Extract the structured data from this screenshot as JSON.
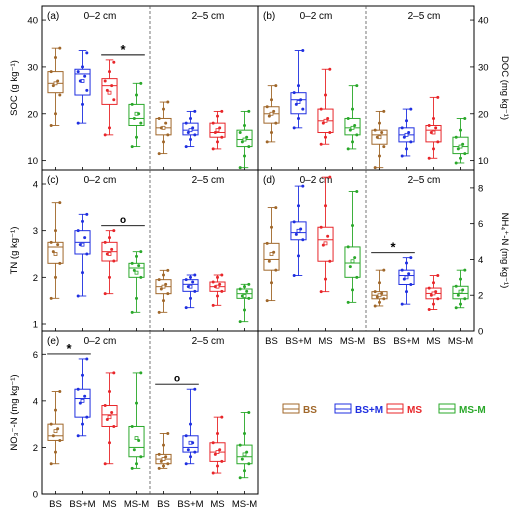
{
  "colors": {
    "BS": "#a0672a",
    "BS+M": "#1f2fe0",
    "MS": "#e8262a",
    "MS-M": "#2aa82a"
  },
  "legend": [
    {
      "key": "BS",
      "label": "BS"
    },
    {
      "key": "BS+M",
      "label": "BS+M"
    },
    {
      "key": "MS",
      "label": "MS"
    },
    {
      "key": "MS-M",
      "label": "MS-M"
    }
  ],
  "x_tick_labels": [
    "BS",
    "BS+M",
    "MS",
    "MS-M",
    "BS",
    "BS+M",
    "MS",
    "MS-M"
  ],
  "chart_data": [
    {
      "type": "box",
      "panel": "(a)",
      "ylabel": "SOC (g kg⁻¹)",
      "ylim": [
        8,
        43
      ],
      "yticks": [
        10,
        20,
        30,
        40
      ],
      "depth_labels": [
        "0–2 cm",
        "2–5 cm"
      ],
      "annotations": [
        {
          "text": "*",
          "between": [
            2,
            3
          ]
        }
      ],
      "boxes": [
        {
          "group": "BS",
          "depth": "0–2 cm",
          "min": 17.5,
          "q1": 24.5,
          "median": 26.5,
          "q3": 29,
          "max": 34,
          "mean": 26.5,
          "points": [
            17.5,
            20,
            24,
            26,
            27,
            29,
            32,
            34
          ]
        },
        {
          "group": "BS+M",
          "depth": "0–2 cm",
          "min": 18,
          "q1": 24,
          "median": 28.5,
          "q3": 29.5,
          "max": 33.5,
          "mean": 27,
          "points": [
            18,
            22,
            25,
            27,
            28,
            29,
            30,
            33
          ]
        },
        {
          "group": "MS",
          "depth": "0–2 cm",
          "min": 15.5,
          "q1": 22,
          "median": 26,
          "q3": 27.5,
          "max": 31.5,
          "mean": 24.5,
          "points": [
            15.5,
            17,
            23,
            25,
            26,
            27,
            29,
            31
          ]
        },
        {
          "group": "MS-M",
          "depth": "0–2 cm",
          "min": 13,
          "q1": 17.5,
          "median": 19,
          "q3": 22,
          "max": 26.5,
          "mean": 20,
          "points": [
            13,
            15,
            18,
            19,
            20,
            22,
            24,
            26.5
          ]
        },
        {
          "group": "BS",
          "depth": "2–5 cm",
          "min": 11.5,
          "q1": 15.5,
          "median": 17,
          "q3": 19,
          "max": 22.5,
          "mean": 17,
          "points": [
            11.5,
            14,
            15.5,
            17,
            18,
            19,
            21,
            22.5
          ]
        },
        {
          "group": "BS+M",
          "depth": "2–5 cm",
          "min": 13,
          "q1": 15.5,
          "median": 16.5,
          "q3": 18,
          "max": 20.5,
          "mean": 16.5,
          "points": [
            13,
            14.5,
            15.5,
            16,
            17,
            18,
            19,
            20.5
          ]
        },
        {
          "group": "MS",
          "depth": "2–5 cm",
          "min": 12.5,
          "q1": 15,
          "median": 16,
          "q3": 18,
          "max": 20.5,
          "mean": 16.5,
          "points": [
            12.5,
            14,
            15,
            16,
            17,
            18,
            19.5,
            20.5
          ]
        },
        {
          "group": "MS-M",
          "depth": "2–5 cm",
          "min": 8.5,
          "q1": 13,
          "median": 14.5,
          "q3": 16.5,
          "max": 20.5,
          "mean": 14.5,
          "points": [
            8.5,
            11,
            13,
            14,
            15,
            16,
            17.5,
            20.5
          ]
        }
      ]
    },
    {
      "type": "box",
      "panel": "(b)",
      "ylabel": "DOC (mg kg⁻¹)",
      "ylim": [
        8,
        43
      ],
      "yticks": [
        10,
        20,
        30,
        40
      ],
      "depth_labels": [
        "0–2 cm",
        "2–5 cm"
      ],
      "annotations": [],
      "boxes": [
        {
          "group": "BS",
          "depth": "0–2 cm",
          "min": 14,
          "q1": 18,
          "median": 20,
          "q3": 21.5,
          "max": 26,
          "mean": 20,
          "points": [
            14,
            16,
            18,
            19.5,
            20.5,
            21.5,
            23,
            26
          ]
        },
        {
          "group": "BS+M",
          "depth": "0–2 cm",
          "min": 17,
          "q1": 20,
          "median": 23,
          "q3": 24.5,
          "max": 33.5,
          "mean": 22.5,
          "points": [
            17,
            19,
            21,
            22,
            23,
            24.5,
            26,
            33.5
          ]
        },
        {
          "group": "MS",
          "depth": "0–2 cm",
          "min": 13.5,
          "q1": 16,
          "median": 18.5,
          "q3": 21,
          "max": 29.5,
          "mean": 18.5,
          "points": [
            13.5,
            15,
            16,
            18,
            19,
            21,
            24,
            29.5
          ]
        },
        {
          "group": "MS-M",
          "depth": "0–2 cm",
          "min": 12.5,
          "q1": 15.5,
          "median": 17,
          "q3": 19,
          "max": 26,
          "mean": 17,
          "points": [
            12.5,
            14,
            15.5,
            16.5,
            17.5,
            19,
            21,
            26
          ]
        },
        {
          "group": "BS",
          "depth": "2–5 cm",
          "min": 8.5,
          "q1": 13.5,
          "median": 15.5,
          "q3": 16.5,
          "max": 20.5,
          "mean": 15,
          "points": [
            8.5,
            11,
            13,
            15,
            16,
            16.5,
            18,
            20.5
          ]
        },
        {
          "group": "BS+M",
          "depth": "2–5 cm",
          "min": 11,
          "q1": 14,
          "median": 15.5,
          "q3": 17,
          "max": 21,
          "mean": 15.5,
          "points": [
            11,
            12.5,
            14,
            15,
            16,
            17,
            18.5,
            21
          ]
        },
        {
          "group": "MS",
          "depth": "2–5 cm",
          "min": 10.5,
          "q1": 14,
          "median": 16.5,
          "q3": 17.5,
          "max": 23.5,
          "mean": 16,
          "points": [
            10.5,
            12.5,
            14,
            16,
            17,
            17.5,
            19,
            23.5
          ]
        },
        {
          "group": "MS-M",
          "depth": "2–5 cm",
          "min": 9.5,
          "q1": 11.5,
          "median": 13,
          "q3": 15,
          "max": 19,
          "mean": 13,
          "points": [
            9.5,
            10.5,
            11.5,
            12.5,
            13.5,
            15,
            16.5,
            19
          ]
        }
      ]
    },
    {
      "type": "box",
      "panel": "(c)",
      "ylabel": "TN (g kg⁻¹)",
      "ylim": [
        0.85,
        4.3
      ],
      "yticks": [
        1,
        2,
        3,
        4
      ],
      "depth_labels": [
        "0–2 cm",
        "2–5 cm"
      ],
      "annotations": [
        {
          "text": "o",
          "between": [
            2,
            3
          ]
        }
      ],
      "boxes": [
        {
          "group": "BS",
          "depth": "0–2 cm",
          "min": 1.55,
          "q1": 2.3,
          "median": 2.65,
          "q3": 2.75,
          "max": 3.6,
          "mean": 2.5,
          "points": [
            1.55,
            2.0,
            2.3,
            2.55,
            2.7,
            2.75,
            3.0,
            3.6
          ]
        },
        {
          "group": "BS+M",
          "depth": "0–2 cm",
          "min": 1.6,
          "q1": 2.5,
          "median": 2.75,
          "q3": 3.0,
          "max": 3.35,
          "mean": 2.7,
          "points": [
            1.6,
            2.1,
            2.5,
            2.7,
            2.85,
            3.0,
            3.2,
            3.35
          ]
        },
        {
          "group": "MS",
          "depth": "0–2 cm",
          "min": 1.65,
          "q1": 2.35,
          "median": 2.55,
          "q3": 2.75,
          "max": 3.0,
          "mean": 2.5,
          "points": [
            1.65,
            2.0,
            2.35,
            2.5,
            2.6,
            2.75,
            2.85,
            3.0
          ]
        },
        {
          "group": "MS-M",
          "depth": "0–2 cm",
          "min": 1.25,
          "q1": 2.0,
          "median": 2.2,
          "q3": 2.3,
          "max": 2.55,
          "mean": 2.1,
          "points": [
            1.25,
            1.55,
            2.0,
            2.15,
            2.25,
            2.3,
            2.45,
            2.55
          ]
        },
        {
          "group": "BS",
          "depth": "2–5 cm",
          "min": 1.25,
          "q1": 1.65,
          "median": 1.8,
          "q3": 1.95,
          "max": 2.15,
          "mean": 1.8,
          "points": [
            1.25,
            1.5,
            1.65,
            1.75,
            1.85,
            1.95,
            2.05,
            2.15
          ]
        },
        {
          "group": "BS+M",
          "depth": "2–5 cm",
          "min": 1.35,
          "q1": 1.7,
          "median": 1.85,
          "q3": 1.95,
          "max": 2.05,
          "mean": 1.8,
          "points": [
            1.35,
            1.55,
            1.7,
            1.8,
            1.9,
            1.95,
            2.0,
            2.05
          ]
        },
        {
          "group": "MS",
          "depth": "2–5 cm",
          "min": 1.4,
          "q1": 1.7,
          "median": 1.8,
          "q3": 1.9,
          "max": 2.05,
          "mean": 1.8,
          "points": [
            1.4,
            1.6,
            1.7,
            1.8,
            1.85,
            1.9,
            2.0,
            2.05
          ]
        },
        {
          "group": "MS-M",
          "depth": "2–5 cm",
          "min": 1.05,
          "q1": 1.55,
          "median": 1.65,
          "q3": 1.75,
          "max": 1.85,
          "mean": 1.6,
          "points": [
            1.05,
            1.3,
            1.55,
            1.6,
            1.7,
            1.75,
            1.8,
            1.85
          ]
        }
      ]
    },
    {
      "type": "box",
      "panel": "(d)",
      "ylabel": "NH₄⁺-N (mg kg⁻¹)",
      "ylim": [
        0,
        9
      ],
      "yticks": [
        0,
        2,
        4,
        6,
        8
      ],
      "depth_labels": [
        "0–2 cm",
        "2–5 cm"
      ],
      "annotations": [
        {
          "text": "*",
          "between": [
            4,
            5
          ]
        }
      ],
      "boxes": [
        {
          "group": "BS",
          "depth": "0–2 cm",
          "min": 1.7,
          "q1": 3.4,
          "median": 4.0,
          "q3": 4.9,
          "max": 6.9,
          "mean": 4.3,
          "points": [
            1.7,
            2.7,
            3.4,
            3.9,
            4.4,
            4.9,
            5.8,
            6.9
          ]
        },
        {
          "group": "BS+M",
          "depth": "0–2 cm",
          "min": 3.1,
          "q1": 5.1,
          "median": 5.5,
          "q3": 6.1,
          "max": 8.1,
          "mean": 5.6,
          "points": [
            3.1,
            4.2,
            5.1,
            5.4,
            5.7,
            6.1,
            7.0,
            8.1
          ]
        },
        {
          "group": "MS",
          "depth": "0–2 cm",
          "min": 2.2,
          "q1": 3.9,
          "median": 5.1,
          "q3": 5.8,
          "max": 8.6,
          "mean": 4.9,
          "points": [
            2.2,
            2.9,
            3.9,
            4.8,
            5.3,
            5.8,
            7.0,
            8.6
          ]
        },
        {
          "group": "MS-M",
          "depth": "0–2 cm",
          "min": 1.6,
          "q1": 3.0,
          "median": 3.8,
          "q3": 4.7,
          "max": 7.8,
          "mean": 3.9,
          "points": [
            1.6,
            2.3,
            3.0,
            3.6,
            4.1,
            4.7,
            5.9,
            7.8
          ]
        },
        {
          "group": "BS",
          "depth": "2–5 cm",
          "min": 1.4,
          "q1": 1.8,
          "median": 2.0,
          "q3": 2.2,
          "max": 3.4,
          "mean": 2.0,
          "points": [
            1.4,
            1.6,
            1.8,
            1.9,
            2.1,
            2.2,
            2.7,
            3.4
          ]
        },
        {
          "group": "BS+M",
          "depth": "2–5 cm",
          "min": 1.5,
          "q1": 2.6,
          "median": 3.1,
          "q3": 3.4,
          "max": 4.1,
          "mean": 3.0,
          "points": [
            1.5,
            2.2,
            2.6,
            2.9,
            3.2,
            3.4,
            3.8,
            4.1
          ]
        },
        {
          "group": "MS",
          "depth": "2–5 cm",
          "min": 1.2,
          "q1": 1.8,
          "median": 2.1,
          "q3": 2.4,
          "max": 3.1,
          "mean": 2.1,
          "points": [
            1.2,
            1.5,
            1.8,
            2.0,
            2.2,
            2.4,
            2.7,
            3.1
          ]
        },
        {
          "group": "MS-M",
          "depth": "2–5 cm",
          "min": 1.3,
          "q1": 1.8,
          "median": 2.1,
          "q3": 2.5,
          "max": 3.4,
          "mean": 2.2,
          "points": [
            1.3,
            1.5,
            1.8,
            2.0,
            2.3,
            2.5,
            2.9,
            3.4
          ]
        }
      ]
    },
    {
      "type": "box",
      "panel": "(e)",
      "ylabel": "NO₃⁻-N (mg kg⁻¹)",
      "ylim": [
        0,
        7
      ],
      "yticks": [
        0,
        2,
        4,
        6
      ],
      "depth_labels": [
        "0–2 cm",
        "2–5 cm"
      ],
      "annotations": [
        {
          "text": "*",
          "between": [
            0,
            1
          ]
        },
        {
          "text": "o",
          "between": [
            4,
            5
          ]
        }
      ],
      "boxes": [
        {
          "group": "BS",
          "depth": "0–2 cm",
          "min": 1.3,
          "q1": 2.3,
          "median": 2.5,
          "q3": 3.0,
          "max": 4.4,
          "mean": 2.7,
          "points": [
            1.3,
            1.8,
            2.3,
            2.5,
            2.8,
            3.0,
            3.6,
            4.4
          ]
        },
        {
          "group": "BS+M",
          "depth": "0–2 cm",
          "min": 2.5,
          "q1": 3.3,
          "median": 4.1,
          "q3": 4.5,
          "max": 5.8,
          "mean": 4.0,
          "points": [
            2.5,
            3.0,
            3.3,
            3.9,
            4.2,
            4.5,
            5.1,
            5.8
          ]
        },
        {
          "group": "MS",
          "depth": "0–2 cm",
          "min": 1.3,
          "q1": 2.9,
          "median": 3.4,
          "q3": 3.8,
          "max": 5.2,
          "mean": 3.3,
          "points": [
            1.3,
            2.2,
            2.9,
            3.2,
            3.5,
            3.8,
            4.4,
            5.2
          ]
        },
        {
          "group": "MS-M",
          "depth": "0–2 cm",
          "min": 1.1,
          "q1": 1.6,
          "median": 2.0,
          "q3": 2.9,
          "max": 5.2,
          "mean": 2.4,
          "points": [
            1.1,
            1.3,
            1.6,
            1.9,
            2.3,
            2.9,
            3.9,
            5.2
          ]
        },
        {
          "group": "BS",
          "depth": "2–5 cm",
          "min": 1.1,
          "q1": 1.3,
          "median": 1.5,
          "q3": 1.7,
          "max": 2.6,
          "mean": 1.5,
          "points": [
            1.1,
            1.2,
            1.3,
            1.4,
            1.6,
            1.7,
            2.1,
            2.6
          ]
        },
        {
          "group": "BS+M",
          "depth": "2–5 cm",
          "min": 1.3,
          "q1": 1.8,
          "median": 2.0,
          "q3": 2.5,
          "max": 4.5,
          "mean": 2.2,
          "points": [
            1.3,
            1.6,
            1.8,
            1.9,
            2.2,
            2.5,
            3.0,
            4.5
          ]
        },
        {
          "group": "MS",
          "depth": "2–5 cm",
          "min": 0.9,
          "q1": 1.4,
          "median": 1.8,
          "q3": 2.2,
          "max": 3.3,
          "mean": 1.8,
          "points": [
            0.9,
            1.2,
            1.4,
            1.7,
            1.9,
            2.2,
            2.6,
            3.3
          ]
        },
        {
          "group": "MS-M",
          "depth": "2–5 cm",
          "min": 0.7,
          "q1": 1.3,
          "median": 1.6,
          "q3": 2.1,
          "max": 3.5,
          "mean": 1.7,
          "points": [
            0.7,
            1.0,
            1.3,
            1.5,
            1.8,
            2.1,
            2.6,
            3.5
          ]
        }
      ]
    }
  ]
}
